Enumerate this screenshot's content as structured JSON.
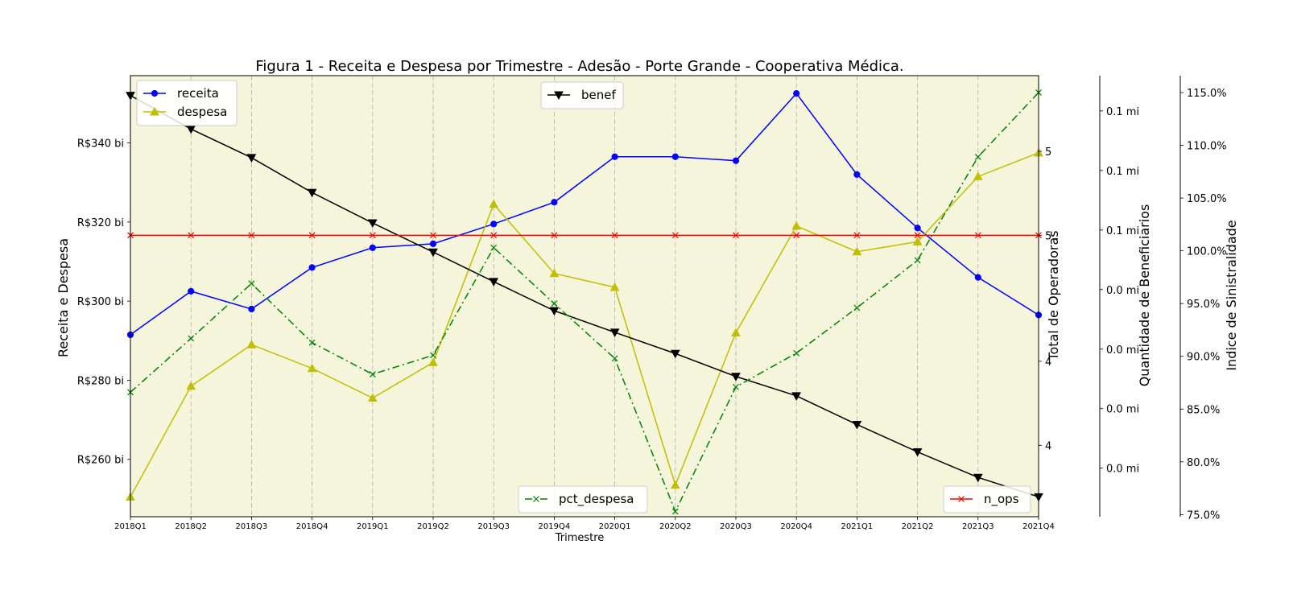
{
  "chart_data": {
    "type": "line",
    "title": "Figura 1 - Receita e Despesa por Trimestre - Adesão - Porte Grande - Cooperativa Médica.",
    "xlabel": "Trimestre",
    "categories": [
      "2018Q1",
      "2018Q2",
      "2018Q3",
      "2018Q4",
      "2019Q1",
      "2019Q2",
      "2019Q3",
      "2019Q4",
      "2020Q1",
      "2020Q2",
      "2020Q3",
      "2020Q4",
      "2021Q1",
      "2021Q2",
      "2021Q3",
      "2021Q4"
    ],
    "background": "#f5f5dc",
    "grid_x": true,
    "axes": {
      "left": {
        "label": "Receita e Despesa",
        "ylim": [
          245.5,
          357
        ],
        "ticks": [
          260,
          280,
          300,
          320,
          340
        ],
        "tick_labels": [
          "R$260 bi",
          "R$280 bi",
          "R$300 bi",
          "R$320 bi",
          "R$340 bi"
        ]
      },
      "operadoras": {
        "label": "Total de Operadoras",
        "ylim": [
          3.66,
          5.76
        ],
        "ticks": [
          4,
          4.4,
          5,
          5.4
        ],
        "tick_labels": [
          "4",
          "4",
          "5",
          "5"
        ]
      },
      "beneficiarios": {
        "label": "Quantidade de Beneficiarios",
        "ylim": [
          0,
          1
        ],
        "ticks": [
          0.11,
          0.245,
          0.38,
          0.515,
          0.65,
          0.785,
          0.92
        ],
        "tick_labels": [
          "0.0 mi",
          "0.0 mi",
          "0.0 mi",
          "0.0 mi",
          "0.1 mi",
          "0.1 mi",
          "0.1 mi"
        ]
      },
      "sinistralidade": {
        "label": "Indice de Sinistralidade",
        "ylim": [
          74.8,
          116.6
        ],
        "ticks": [
          75,
          80,
          85,
          90,
          95,
          100,
          105,
          110,
          115
        ],
        "tick_labels": [
          "75.0%",
          "80.0%",
          "85.0%",
          "90.0%",
          "95.0%",
          "100.0%",
          "105.0%",
          "110.0%",
          "115.0%"
        ]
      }
    },
    "series": [
      {
        "name": "receita",
        "axis": "left",
        "color": "#0000ff",
        "marker": "circle",
        "dash": "",
        "values": [
          291.5,
          302.5,
          298.0,
          308.5,
          313.5,
          314.5,
          319.5,
          325.0,
          336.5,
          336.5,
          335.5,
          352.5,
          332.0,
          318.5,
          306.0,
          296.5
        ]
      },
      {
        "name": "despesa",
        "axis": "left",
        "color": "#bfbf00",
        "marker": "triangle-up",
        "dash": "",
        "values": [
          250.5,
          278.5,
          289.0,
          283.0,
          275.5,
          284.5,
          324.5,
          307.0,
          303.5,
          253.5,
          292.0,
          319.0,
          312.5,
          315.0,
          331.5,
          337.5
        ]
      },
      {
        "name": "benef",
        "axis": "beneficiarios",
        "color": "#000000",
        "marker": "triangle-down",
        "dash": "",
        "values": [
          0.955,
          0.879,
          0.814,
          0.735,
          0.666,
          0.6,
          0.533,
          0.467,
          0.418,
          0.37,
          0.318,
          0.274,
          0.209,
          0.147,
          0.089,
          0.045
        ]
      },
      {
        "name": "pct_despesa",
        "axis": "sinistralidade",
        "color": "#008000",
        "marker": "x",
        "dash": "9,4,2,4",
        "values": [
          86.6,
          91.7,
          96.9,
          91.3,
          88.3,
          90.1,
          100.3,
          95.0,
          89.8,
          75.3,
          87.1,
          90.3,
          94.6,
          99.1,
          108.9,
          115.0
        ]
      },
      {
        "name": "n_ops",
        "axis": "operadoras",
        "color": "#ff0000",
        "marker": "x",
        "dash": "",
        "values": [
          5,
          5,
          5,
          5,
          5,
          5,
          5,
          5,
          5,
          5,
          5,
          5,
          5,
          5,
          5,
          5
        ]
      }
    ],
    "legends": [
      {
        "position": "upper-left",
        "entries": [
          "receita",
          "despesa"
        ]
      },
      {
        "position": "upper-center",
        "entries": [
          "benef"
        ]
      },
      {
        "position": "lower-center",
        "entries": [
          "pct_despesa"
        ]
      },
      {
        "position": "lower-right",
        "entries": [
          "n_ops"
        ]
      }
    ]
  }
}
